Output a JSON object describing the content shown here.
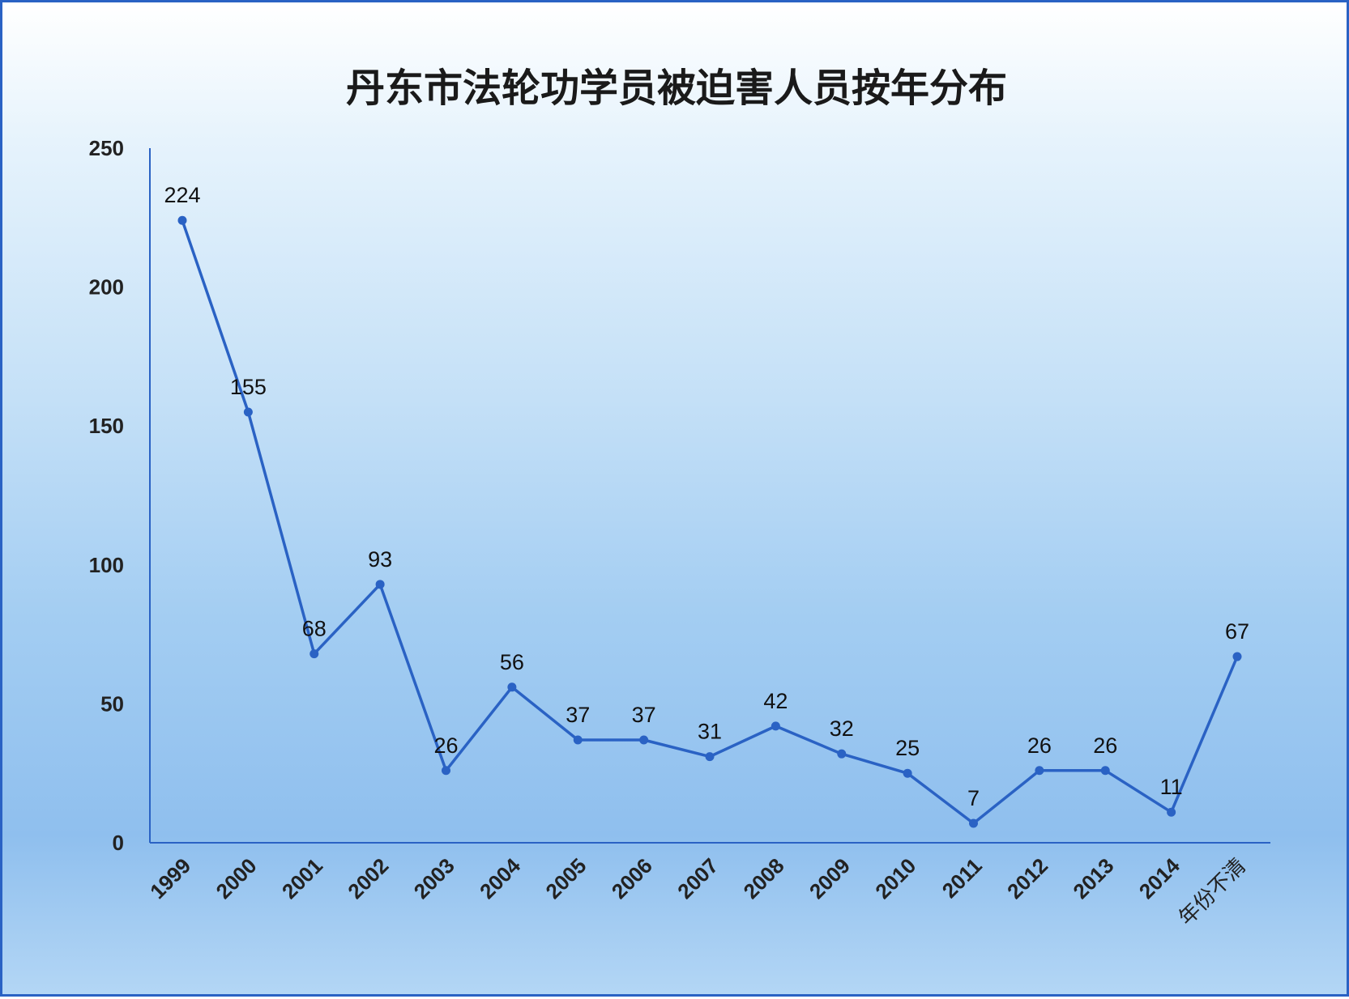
{
  "chart_data": {
    "type": "line",
    "title": "丹东市法轮功学员被迫害人员按年分布",
    "xlabel": "",
    "ylabel": "",
    "categories": [
      "1999",
      "2000",
      "2001",
      "2002",
      "2003",
      "2004",
      "2005",
      "2006",
      "2007",
      "2008",
      "2009",
      "2010",
      "2011",
      "2012",
      "2013",
      "2014",
      "年份不清"
    ],
    "series": [
      {
        "values": [
          224,
          155,
          68,
          93,
          26,
          56,
          37,
          37,
          31,
          42,
          32,
          25,
          7,
          26,
          26,
          11,
          67
        ],
        "color": "#2a62c4"
      }
    ],
    "ylim": [
      0,
      250
    ],
    "yticks": [
      0,
      50,
      100,
      150,
      200,
      250
    ],
    "grid": false,
    "legend": "none",
    "data_labels": true
  }
}
